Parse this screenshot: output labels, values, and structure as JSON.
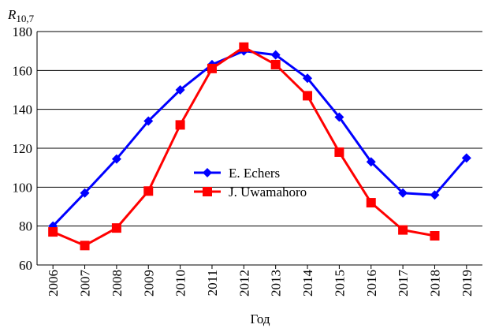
{
  "chart_data": {
    "type": "line",
    "ylabel": "R",
    "ylabel_sub": "10,7",
    "xlabel": "Год",
    "categories": [
      "2006",
      "2007",
      "2008",
      "2009",
      "2010",
      "2011",
      "2012",
      "2013",
      "2014",
      "2015",
      "2016",
      "2017",
      "2018",
      "2019"
    ],
    "series": [
      {
        "name": "E. Echers",
        "color": "#0000ff",
        "marker": "diamond",
        "values": [
          80,
          97,
          114.5,
          134,
          150,
          163,
          170,
          168,
          156,
          136,
          113,
          97,
          96,
          115
        ]
      },
      {
        "name": "J. Uwamahoro",
        "color": "#ff0000",
        "marker": "square",
        "values": [
          77,
          70,
          79,
          98,
          132,
          161,
          172,
          163,
          147,
          118,
          92,
          78,
          75,
          null
        ]
      }
    ],
    "ylim": [
      60,
      180
    ],
    "yticks": [
      60,
      80,
      100,
      120,
      140,
      160,
      180
    ],
    "grid": true,
    "legend": "center"
  }
}
